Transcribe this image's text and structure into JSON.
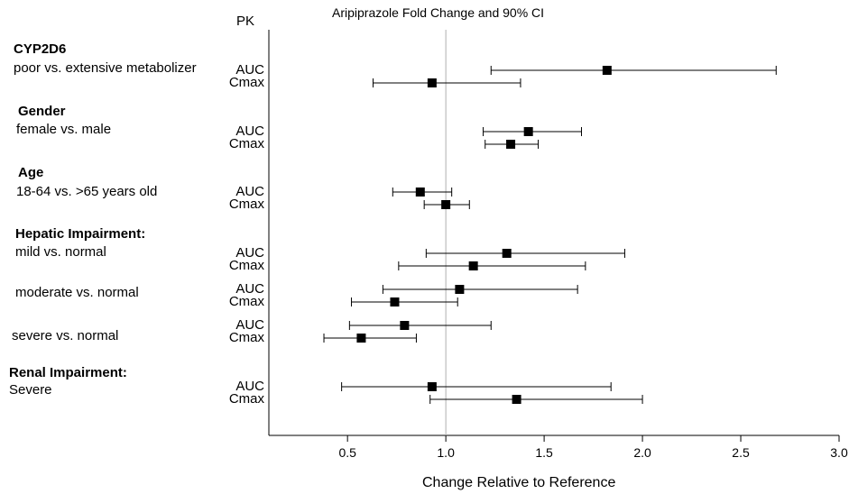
{
  "chart_data": {
    "type": "forest",
    "title": "Aripiprazole Fold Change and 90% CI",
    "pk_header": "PK",
    "xlabel": "Change Relative to Reference",
    "xlim": [
      0.1,
      3.0
    ],
    "xticks": [
      "0.5",
      "1.0",
      "1.5",
      "2.0",
      "2.5",
      "3.0"
    ],
    "reference_line": 1.0,
    "groups": [
      {
        "header": "CYP2D6",
        "subgroups": [
          {
            "label": "poor vs. extensive metabolizer",
            "rows": [
              {
                "pk": "AUC",
                "estimate": 1.82,
                "ci": [
                  1.23,
                  2.68
                ]
              },
              {
                "pk": "Cmax",
                "estimate": 0.93,
                "ci": [
                  0.63,
                  1.38
                ]
              }
            ]
          }
        ]
      },
      {
        "header": "Gender",
        "subgroups": [
          {
            "label": "female vs. male",
            "rows": [
              {
                "pk": "AUC",
                "estimate": 1.42,
                "ci": [
                  1.19,
                  1.69
                ]
              },
              {
                "pk": "Cmax",
                "estimate": 1.33,
                "ci": [
                  1.2,
                  1.47
                ]
              }
            ]
          }
        ]
      },
      {
        "header": "Age",
        "subgroups": [
          {
            "label": "18-64 vs. >65 years old",
            "rows": [
              {
                "pk": "AUC",
                "estimate": 0.87,
                "ci": [
                  0.73,
                  1.03
                ]
              },
              {
                "pk": "Cmax",
                "estimate": 1.0,
                "ci": [
                  0.89,
                  1.12
                ]
              }
            ]
          }
        ]
      },
      {
        "header": "Hepatic Impairment:",
        "subgroups": [
          {
            "label": "mild vs. normal",
            "rows": [
              {
                "pk": "AUC",
                "estimate": 1.31,
                "ci": [
                  0.9,
                  1.91
                ]
              },
              {
                "pk": "Cmax",
                "estimate": 1.14,
                "ci": [
                  0.76,
                  1.71
                ]
              }
            ]
          },
          {
            "label": "moderate vs. normal",
            "rows": [
              {
                "pk": "AUC",
                "estimate": 1.07,
                "ci": [
                  0.68,
                  1.67
                ]
              },
              {
                "pk": "Cmax",
                "estimate": 0.74,
                "ci": [
                  0.52,
                  1.06
                ]
              }
            ]
          },
          {
            "label": "severe vs. normal",
            "rows": [
              {
                "pk": "AUC",
                "estimate": 0.79,
                "ci": [
                  0.51,
                  1.23
                ]
              },
              {
                "pk": "Cmax",
                "estimate": 0.57,
                "ci": [
                  0.38,
                  0.85
                ]
              }
            ]
          }
        ]
      },
      {
        "header": "Renal Impairment:",
        "subgroups": [
          {
            "label": "Severe",
            "rows": [
              {
                "pk": "AUC",
                "estimate": 0.93,
                "ci": [
                  0.47,
                  1.84
                ]
              },
              {
                "pk": "Cmax",
                "estimate": 1.36,
                "ci": [
                  0.92,
                  2.0
                ]
              }
            ]
          }
        ]
      }
    ]
  }
}
